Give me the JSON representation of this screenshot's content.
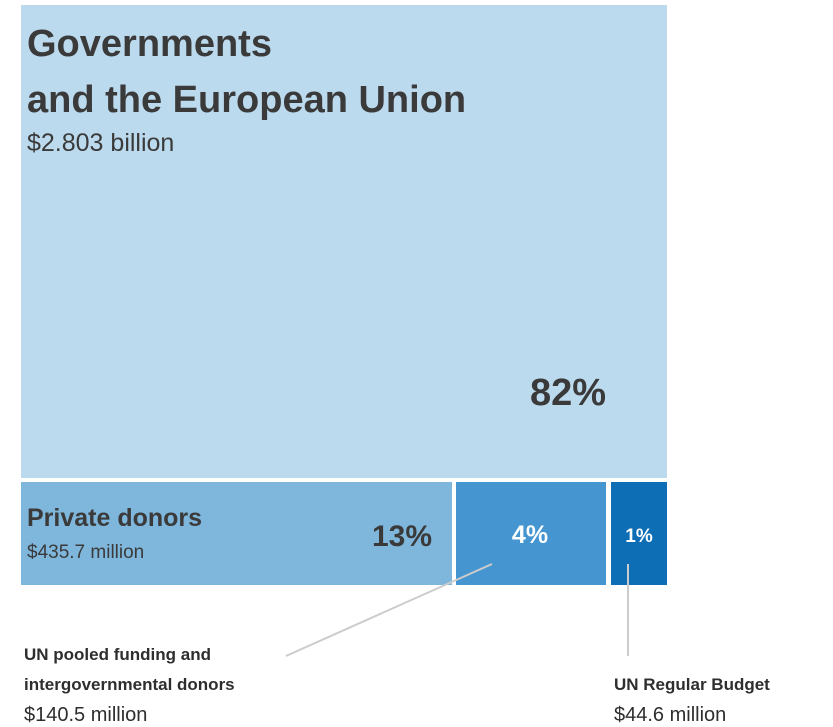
{
  "chart_data": {
    "type": "treemap",
    "currency": "USD",
    "segments": [
      {
        "key": "governments",
        "name_lines": [
          "Governments",
          "and the European Union"
        ],
        "amount_label": "$2.803 billion",
        "amount_musd": 2803,
        "percent": 82,
        "percent_label": "82%",
        "color": "#bcdaed"
      },
      {
        "key": "private",
        "name_lines": [
          "Private donors"
        ],
        "amount_label": "$435.7 million",
        "amount_musd": 435.7,
        "percent": 13,
        "percent_label": "13%",
        "color": "#7fb6db"
      },
      {
        "key": "pooled",
        "name_lines": [
          "UN pooled funding and",
          "intergovernmental donors"
        ],
        "amount_label": "$140.5 million",
        "amount_musd": 140.5,
        "percent": 4,
        "percent_label": "4%",
        "color": "#4596d0"
      },
      {
        "key": "regular",
        "name_lines": [
          "UN Regular Budget"
        ],
        "amount_label": "$44.6 million",
        "amount_musd": 44.6,
        "percent": 1,
        "percent_label": "1%",
        "color": "#0d6db5"
      }
    ],
    "callout_line_color": "#cccccc"
  }
}
